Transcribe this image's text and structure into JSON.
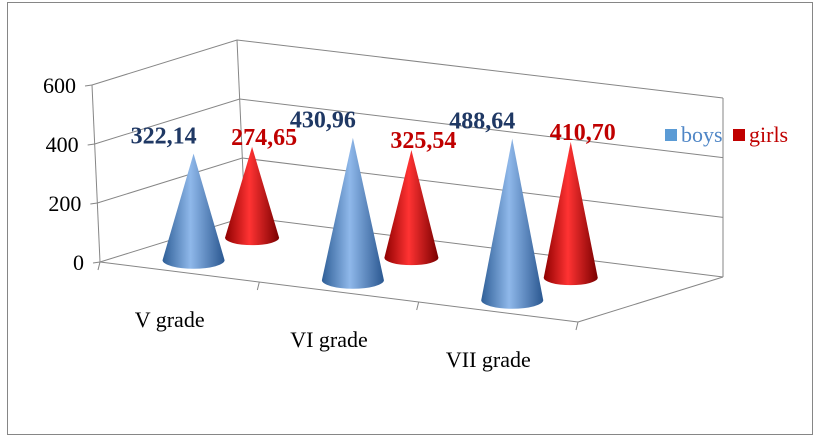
{
  "chart_data": {
    "type": "bar",
    "variant": "3d-cone",
    "categories": [
      "V grade",
      "VI grade",
      "VII grade"
    ],
    "series": [
      {
        "name": "boys",
        "values": [
          322.14,
          430.96,
          488.64
        ],
        "labels": [
          "322,14",
          "430,96",
          "488,64"
        ],
        "color": "#5b9bd5"
      },
      {
        "name": "girls",
        "values": [
          274.65,
          325.54,
          410.7
        ],
        "labels": [
          "274,65",
          "325,54",
          "410,70"
        ],
        "color": "#c00000"
      }
    ],
    "y_ticks": [
      "0",
      "200",
      "400",
      "600"
    ],
    "ylim": [
      0,
      600
    ],
    "grid": true,
    "legend": "right",
    "title": "",
    "xlabel": "",
    "ylabel": "",
    "colors": {
      "boys_label": "#1f3864",
      "girls_label": "#c00000",
      "axis": "#868686",
      "border": "#868686"
    }
  }
}
